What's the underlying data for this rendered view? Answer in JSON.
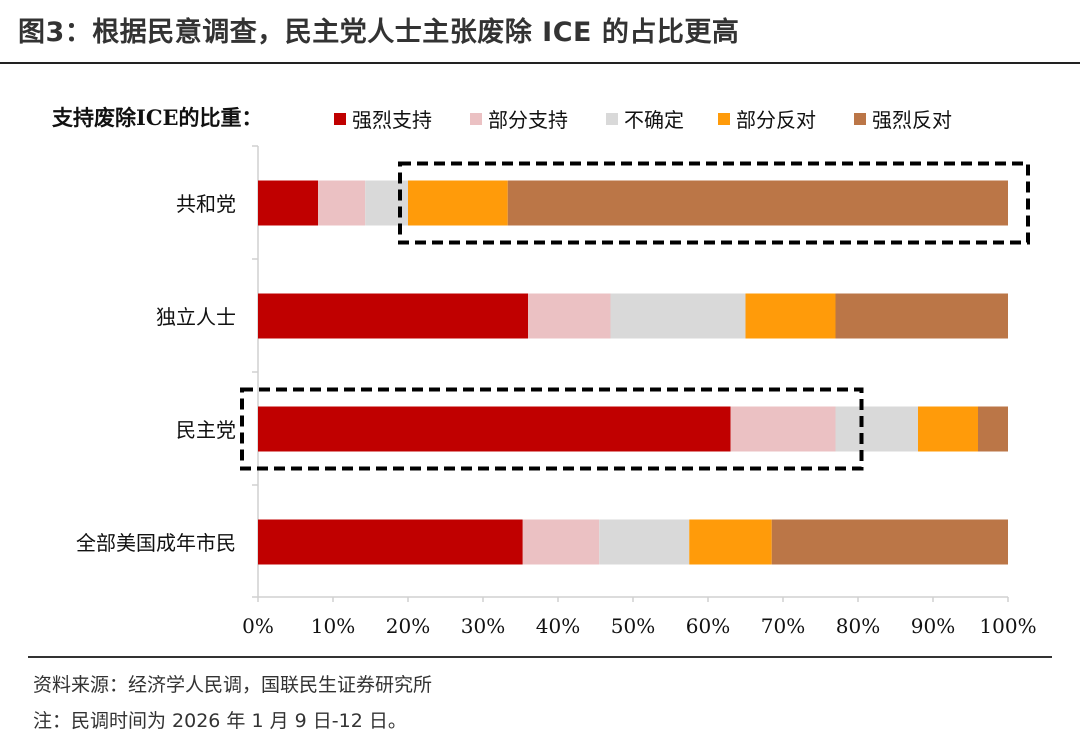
{
  "figure": {
    "title": "图3：根据民意调查，民主党人士主张废除 ICE 的占比更高",
    "source": "资料来源：经济学人民调，国联民生证券研究所",
    "note": "注：民调时间为 2026 年 1 月 9 日-12 日。"
  },
  "chart_data": {
    "type": "bar",
    "orientation": "horizontal-stacked-100",
    "legend_title": "支持废除ICE的比重：",
    "legend_position": "top",
    "categories": [
      "共和党",
      "独立人士",
      "民主党",
      "全部美国成年市民"
    ],
    "series": [
      {
        "name": "强烈支持",
        "color": "#C00000",
        "values": [
          8,
          36,
          63,
          35.3
        ]
      },
      {
        "name": "部分支持",
        "color": "#EBC1C3",
        "values": [
          6.3,
          11,
          14,
          10.2
        ]
      },
      {
        "name": "不确定",
        "color": "#D9D9D9",
        "values": [
          5.7,
          18,
          11,
          12
        ]
      },
      {
        "name": "部分反对",
        "color": "#FF9B0A",
        "values": [
          13.3,
          12,
          8,
          11
        ]
      },
      {
        "name": "强烈反对",
        "color": "#BB7647",
        "values": [
          66.7,
          23,
          4,
          31.5
        ]
      }
    ],
    "x_ticks": [
      "0%",
      "10%",
      "20%",
      "30%",
      "40%",
      "50%",
      "60%",
      "70%",
      "80%",
      "90%",
      "100%"
    ],
    "xlim": [
      0,
      100
    ],
    "grid": false,
    "highlights": [
      {
        "category": "共和党",
        "from": 20,
        "to": 100
      },
      {
        "category": "民主党",
        "from": 0,
        "to": 77
      }
    ]
  }
}
